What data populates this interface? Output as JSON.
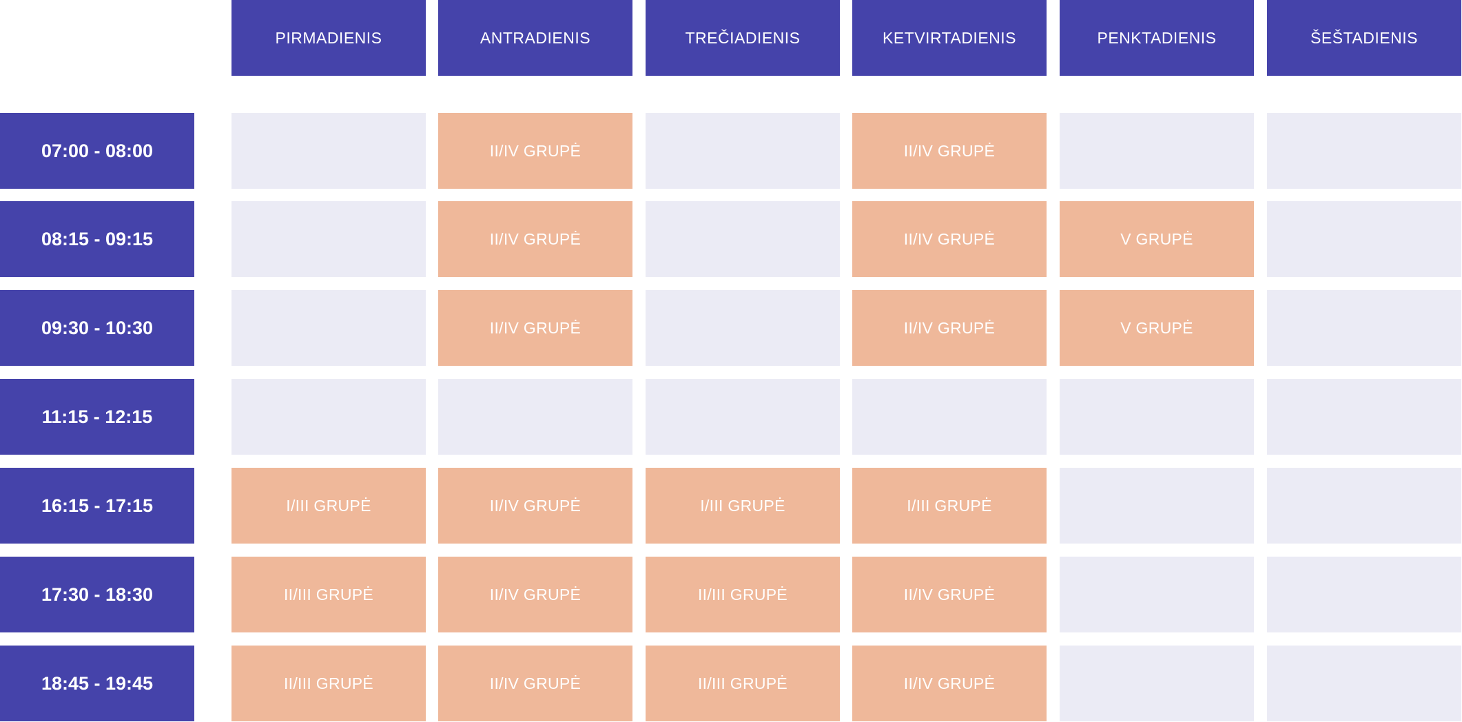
{
  "colors": {
    "header_bg": "#4543aa",
    "header_text": "#ffffff",
    "empty_slot": "#ebebf5",
    "booked_slot": "#efb89a"
  },
  "days": [
    "PIRMADIENIS",
    "ANTRADIENIS",
    "TREČIADIENIS",
    "KETVIRTADIENIS",
    "PENKTADIENIS",
    "ŠEŠTADIENIS"
  ],
  "times": [
    "07:00 - 08:00",
    "08:15 - 09:15",
    "09:30 - 10:30",
    "11:15 - 12:15",
    "16:15 - 17:15",
    "17:30 - 18:30",
    "18:45 - 19:45"
  ],
  "grid": [
    [
      "",
      "II/IV GRUPĖ",
      "",
      "II/IV GRUPĖ",
      "",
      ""
    ],
    [
      "",
      "II/IV GRUPĖ",
      "",
      "II/IV GRUPĖ",
      "V GRUPĖ",
      ""
    ],
    [
      "",
      "II/IV GRUPĖ",
      "",
      "II/IV GRUPĖ",
      "V GRUPĖ",
      ""
    ],
    [
      "",
      "",
      "",
      "",
      "",
      ""
    ],
    [
      "I/III GRUPĖ",
      "II/IV GRUPĖ",
      "I/III GRUPĖ",
      "I/III GRUPĖ",
      "",
      ""
    ],
    [
      "II/III GRUPĖ",
      "II/IV GRUPĖ",
      "II/III GRUPĖ",
      "II/IV GRUPĖ",
      "",
      ""
    ],
    [
      "II/III GRUPĖ",
      "II/IV GRUPĖ",
      "II/III GRUPĖ",
      "II/IV GRUPĖ",
      "",
      ""
    ]
  ]
}
